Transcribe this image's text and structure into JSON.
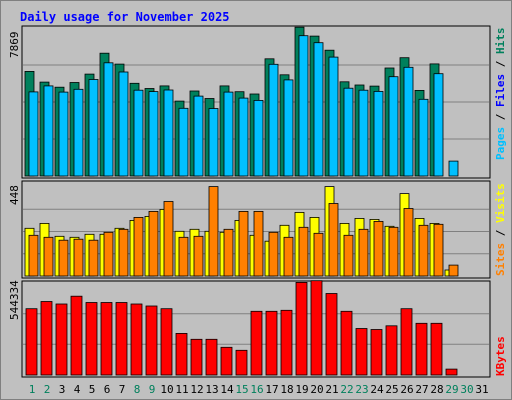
{
  "colors": {
    "background": "#c0c0c0",
    "hits": "#00805c",
    "files": "#00c0ff",
    "sites": "#ff8000",
    "visits": "#ffff00",
    "kbytes": "#ff0000",
    "title": "#0000ff",
    "weekend_day": "#00805c",
    "weekday": "#000000"
  },
  "chart_data": {
    "type": "bar",
    "title": "Daily usage for November 2025",
    "days": [
      "1",
      "2",
      "3",
      "4",
      "5",
      "6",
      "7",
      "8",
      "9",
      "10",
      "11",
      "12",
      "13",
      "14",
      "15",
      "16",
      "17",
      "18",
      "19",
      "20",
      "21",
      "22",
      "23",
      "24",
      "25",
      "26",
      "27",
      "28",
      "29",
      "30",
      "31"
    ],
    "weekend_days": [
      "1",
      "2",
      "8",
      "9",
      "15",
      "16",
      "22",
      "23",
      "29",
      "30"
    ],
    "panels": [
      {
        "name": "hits-files",
        "ymax_label": "7869",
        "ymax": 7869,
        "series_labels": [
          "Pages",
          "Files",
          "Hits"
        ],
        "series": [
          {
            "name": "Hits",
            "values": [
              5560,
              4990,
              4720,
              4970,
              5420,
              6530,
              5950,
              4930,
              4650,
              4790,
              3980,
              4520,
              4120,
              4790,
              4480,
              4360,
              6230,
              5380,
              7910,
              7440,
              6690,
              5010,
              4840,
              4780,
              5740,
              6290,
              4550,
              5960,
              0,
              0,
              0
            ]
          },
          {
            "name": "Files",
            "values": [
              4470,
              4790,
              4460,
              4610,
              5130,
              6020,
              5530,
              4560,
              4490,
              4570,
              3600,
              4250,
              3590,
              4460,
              4140,
              4020,
              5940,
              5110,
              7460,
              7090,
              6320,
              4670,
              4560,
              4500,
              5280,
              5780,
              4080,
              5440,
              790,
              0,
              0
            ]
          }
        ]
      },
      {
        "name": "visits-sites",
        "ymax_label": "448",
        "ymax": 448,
        "series_labels": [
          "Sites",
          "Visits"
        ],
        "series": [
          {
            "name": "Visits",
            "values": [
              240,
              265,
              200,
              195,
              210,
              210,
              240,
              280,
              300,
              335,
              225,
              235,
              225,
              220,
              280,
              205,
              175,
              255,
              320,
              295,
              450,
              265,
              290,
              285,
              250,
              415,
              290,
              265,
              30,
              0,
              0
            ]
          },
          {
            "name": "Sites",
            "values": [
              205,
              195,
              180,
              185,
              180,
              220,
              235,
              295,
              325,
              375,
              195,
              200,
              450,
              235,
              325,
              325,
              220,
              195,
              245,
              215,
              365,
              205,
              235,
              275,
              245,
              340,
              255,
              260,
              55,
              0,
              0
            ]
          }
        ]
      },
      {
        "name": "kbytes",
        "ymax_label": "544334",
        "ymax": 544334,
        "series_labels": [
          "KBytes"
        ],
        "series": [
          {
            "name": "KBytes",
            "values": [
              392000,
              435000,
              420000,
              466000,
              429000,
              429000,
              429000,
              420000,
              408000,
              392000,
              246000,
              211000,
              211000,
              164000,
              146000,
              377000,
              377000,
              383000,
              548000,
              558000,
              482000,
              377000,
              275000,
              269000,
              291000,
              392000,
              306000,
              306000,
              35000,
              0,
              0
            ]
          }
        ]
      }
    ]
  }
}
